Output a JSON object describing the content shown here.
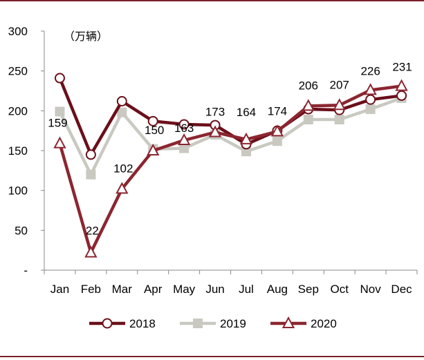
{
  "chart_data": {
    "type": "line",
    "unit_label": "（万辆）",
    "categories": [
      "Jan",
      "Feb",
      "Mar",
      "Apr",
      "May",
      "Jun",
      "Jul",
      "Aug",
      "Sep",
      "Oct",
      "Nov",
      "Dec"
    ],
    "ylim": [
      0,
      300
    ],
    "yticks": [
      {
        "value": 300,
        "label": "300"
      },
      {
        "value": 250,
        "label": "250"
      },
      {
        "value": 200,
        "label": "200"
      },
      {
        "value": 150,
        "label": "150"
      },
      {
        "value": 100,
        "label": "100"
      },
      {
        "value": 50,
        "label": "50"
      },
      {
        "value": 0,
        "label": "-"
      }
    ],
    "series": [
      {
        "name": "2018",
        "color": "#6b0f1a",
        "marker": "circle",
        "values": [
          241,
          145,
          212,
          187,
          183,
          182,
          158,
          175,
          202,
          201,
          214,
          219
        ]
      },
      {
        "name": "2019",
        "color": "#c9c9c2",
        "marker": "square",
        "values": [
          199,
          120,
          198,
          152,
          153,
          170,
          149,
          162,
          189,
          189,
          202,
          216
        ]
      },
      {
        "name": "2020",
        "color": "#8b2630",
        "marker": "triangle",
        "values": [
          159,
          22,
          102,
          150,
          163,
          173,
          164,
          174,
          206,
          207,
          226,
          231
        ]
      }
    ],
    "data_labels": [
      {
        "series": "2020",
        "index": 0,
        "text": "159",
        "place": "below"
      },
      {
        "series": "2020",
        "index": 1,
        "text": "22",
        "place": "above"
      },
      {
        "series": "2020",
        "index": 2,
        "text": "102",
        "place": "below-right"
      },
      {
        "series": "2020",
        "index": 3,
        "text": "150",
        "place": "above-left"
      },
      {
        "series": "2020",
        "index": 4,
        "text": "163",
        "place": "above"
      },
      {
        "series": "2020",
        "index": 5,
        "text": "173",
        "place": "above"
      },
      {
        "series": "2020",
        "index": 6,
        "text": "164",
        "place": "above"
      },
      {
        "series": "2020",
        "index": 7,
        "text": "174",
        "place": "above"
      },
      {
        "series": "2020",
        "index": 8,
        "text": "206",
        "place": "above"
      },
      {
        "series": "2020",
        "index": 9,
        "text": "207",
        "place": "above"
      },
      {
        "series": "2020",
        "index": 10,
        "text": "226",
        "place": "above"
      },
      {
        "series": "2020",
        "index": 11,
        "text": "231",
        "place": "above"
      }
    ],
    "legend_position": "bottom"
  }
}
